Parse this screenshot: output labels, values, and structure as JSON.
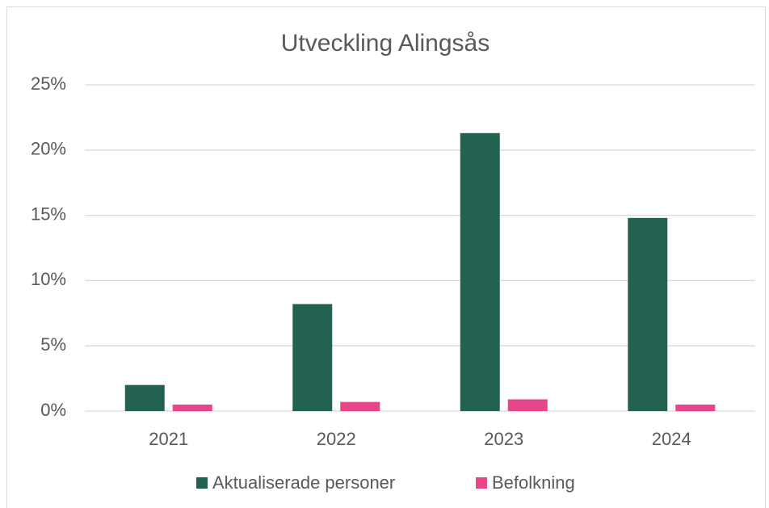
{
  "chart_data": {
    "type": "bar",
    "title": "Utveckling Alingsås",
    "categories": [
      "2021",
      "2022",
      "2023",
      "2024"
    ],
    "series": [
      {
        "name": "Aktualiserade personer",
        "color": "#236251",
        "values": [
          2.0,
          8.2,
          21.3,
          14.8
        ]
      },
      {
        "name": "Befolkning",
        "color": "#e8468a",
        "values": [
          0.5,
          0.7,
          0.9,
          0.5
        ]
      }
    ],
    "ylim": [
      0,
      25
    ],
    "yticks": [
      {
        "value": 0,
        "label": "0%"
      },
      {
        "value": 5,
        "label": "5%"
      },
      {
        "value": 10,
        "label": "10%"
      },
      {
        "value": 15,
        "label": "15%"
      },
      {
        "value": 20,
        "label": "20%"
      },
      {
        "value": 25,
        "label": "25%"
      }
    ],
    "grid": true,
    "legend": "bottom"
  }
}
